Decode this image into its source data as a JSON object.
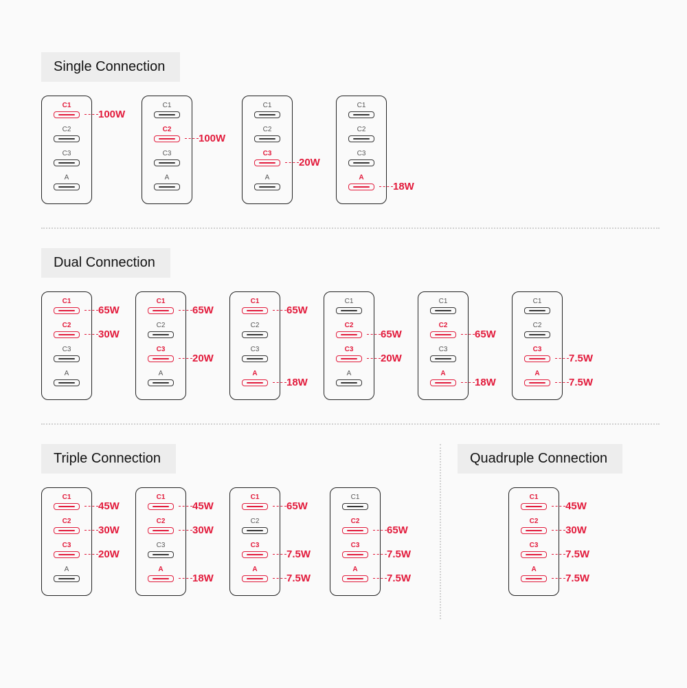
{
  "colors": {
    "accent": "#e21a3b",
    "background": "#fafafa",
    "title_bg": "#ededed",
    "border": "#222222",
    "port_inactive": "#333333",
    "divider": "#d0d0d0"
  },
  "port_labels": [
    "C1",
    "C2",
    "C3",
    "A"
  ],
  "sections": {
    "single": {
      "title": "Single Connection",
      "chargers": [
        {
          "active": [
            true,
            false,
            false,
            false
          ],
          "watts": [
            "100W",
            null,
            null,
            null
          ]
        },
        {
          "active": [
            false,
            true,
            false,
            false
          ],
          "watts": [
            null,
            "100W",
            null,
            null
          ]
        },
        {
          "active": [
            false,
            false,
            true,
            false
          ],
          "watts": [
            null,
            null,
            "20W",
            null
          ]
        },
        {
          "active": [
            false,
            false,
            false,
            true
          ],
          "watts": [
            null,
            null,
            null,
            "18W"
          ]
        }
      ]
    },
    "dual": {
      "title": "Dual Connection",
      "chargers": [
        {
          "active": [
            true,
            true,
            false,
            false
          ],
          "watts": [
            "65W",
            "30W",
            null,
            null
          ]
        },
        {
          "active": [
            true,
            false,
            true,
            false
          ],
          "watts": [
            "65W",
            null,
            "20W",
            null
          ]
        },
        {
          "active": [
            true,
            false,
            false,
            true
          ],
          "watts": [
            "65W",
            null,
            null,
            "18W"
          ]
        },
        {
          "active": [
            false,
            true,
            true,
            false
          ],
          "watts": [
            null,
            "65W",
            "20W",
            null
          ]
        },
        {
          "active": [
            false,
            true,
            false,
            true
          ],
          "watts": [
            null,
            "65W",
            null,
            "18W"
          ]
        },
        {
          "active": [
            false,
            false,
            true,
            true
          ],
          "watts": [
            null,
            null,
            "7.5W",
            "7.5W"
          ]
        }
      ]
    },
    "triple": {
      "title": "Triple Connection",
      "chargers": [
        {
          "active": [
            true,
            true,
            true,
            false
          ],
          "watts": [
            "45W",
            "30W",
            "20W",
            null
          ]
        },
        {
          "active": [
            true,
            true,
            false,
            true
          ],
          "watts": [
            "45W",
            "30W",
            null,
            "18W"
          ]
        },
        {
          "active": [
            true,
            false,
            true,
            true
          ],
          "watts": [
            "65W",
            null,
            "7.5W",
            "7.5W"
          ]
        },
        {
          "active": [
            false,
            true,
            true,
            true
          ],
          "watts": [
            null,
            "65W",
            "7.5W",
            "7.5W"
          ]
        }
      ]
    },
    "quadruple": {
      "title": "Quadruple Connection",
      "chargers": [
        {
          "active": [
            true,
            true,
            true,
            true
          ],
          "watts": [
            "45W",
            "30W",
            "7.5W",
            "7.5W"
          ]
        }
      ]
    }
  }
}
